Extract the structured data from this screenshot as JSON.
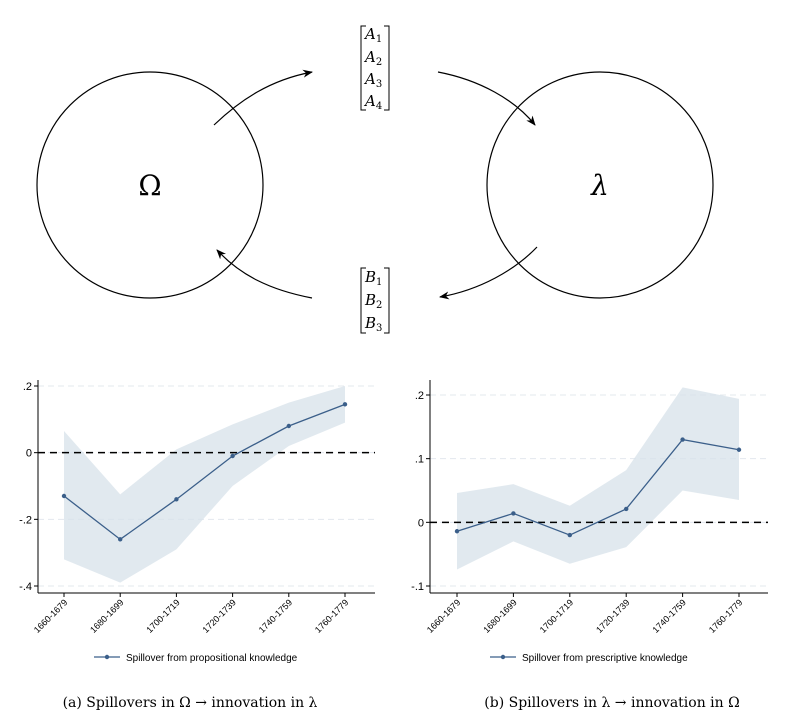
{
  "diagram": {
    "left_node_label": "Ω",
    "right_node_label": "λ",
    "top_vector": [
      {
        "base": "A",
        "sub": "1"
      },
      {
        "base": "A",
        "sub": "2"
      },
      {
        "base": "A",
        "sub": "3"
      },
      {
        "base": "A",
        "sub": "4"
      }
    ],
    "bottom_vector": [
      {
        "base": "B",
        "sub": "1"
      },
      {
        "base": "B",
        "sub": "2"
      },
      {
        "base": "B",
        "sub": "3"
      }
    ]
  },
  "colors": {
    "line": "#3b5f8a",
    "band": "#d7e1ea",
    "axis": "#000000",
    "grid": "#e3e8ee"
  },
  "chart_data": [
    {
      "type": "line",
      "categories": [
        "1660-1679",
        "1680-1699",
        "1700-1719",
        "1720-1739",
        "1740-1759",
        "1760-1779"
      ],
      "series": [
        {
          "name": "Spillover from propositional knowledge",
          "values": [
            -0.13,
            -0.26,
            -0.14,
            -0.01,
            0.08,
            0.145
          ]
        }
      ],
      "ci_lower": [
        -0.32,
        -0.39,
        -0.29,
        -0.1,
        0.02,
        0.09
      ],
      "ci_upper": [
        0.065,
        -0.125,
        0.01,
        0.085,
        0.15,
        0.2
      ],
      "ylim": [
        -0.4,
        0.2
      ],
      "yticks": [
        {
          "v": 0.2,
          "label": ".2"
        },
        {
          "v": 0,
          "label": "0"
        },
        {
          "v": -0.2,
          "label": "-.2"
        },
        {
          "v": -0.4,
          "label": "-.4"
        }
      ],
      "reference_line": 0,
      "legend": "Spillover from propositional knowledge",
      "caption": "(a) Spillovers in Ω → innovation in λ"
    },
    {
      "type": "line",
      "categories": [
        "1660-1679",
        "1680-1699",
        "1700-1719",
        "1720-1739",
        "1740-1759",
        "1760-1779"
      ],
      "series": [
        {
          "name": "Spillover from prescriptive knowledge",
          "values": [
            -0.014,
            0.014,
            -0.02,
            0.021,
            0.13,
            0.114
          ]
        }
      ],
      "ci_lower": [
        -0.074,
        -0.03,
        -0.065,
        -0.039,
        0.05,
        0.035
      ],
      "ci_upper": [
        0.046,
        0.06,
        0.026,
        0.082,
        0.212,
        0.194
      ],
      "ylim": [
        -0.1,
        0.2
      ],
      "yticks": [
        {
          "v": 0.2,
          "label": ".2"
        },
        {
          "v": 0.1,
          "label": ".1"
        },
        {
          "v": 0,
          "label": "0"
        },
        {
          "v": -0.1,
          "label": "-.1"
        }
      ],
      "reference_line": 0,
      "legend": "Spillover from prescriptive knowledge",
      "caption": "(b) Spillovers in λ → innovation in Ω"
    }
  ]
}
